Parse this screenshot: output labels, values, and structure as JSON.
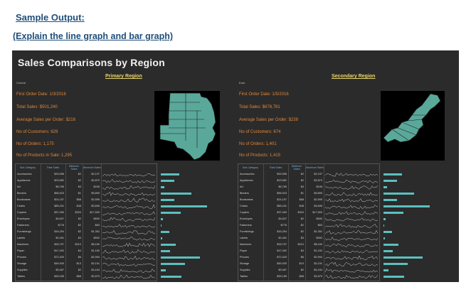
{
  "doc": {
    "title": "Sample Output:",
    "subtitle": "(Explain the line graph and bar graph)"
  },
  "dashboard": {
    "title": "Sales Comparisons by Region",
    "columns": {
      "category": "Sub-Category",
      "total": "Total Sales",
      "min": "Minimum Sales",
      "max": "Maximum Sales"
    },
    "regions": [
      {
        "heading": "Primary Region",
        "subregion": "Central",
        "stats": [
          "First Order Date: 1/3/2016",
          "Total Sales: $501,240",
          "Average Sales per Order: $216",
          "No of Customers: 629",
          "No of Orders: 1,175",
          "No of Products in Sale: 1,295"
        ],
        "map": "central-us-map"
      },
      {
        "heading": "Secondary Region",
        "subregion": "East",
        "stats": [
          "First Order Date: 1/5/2016",
          "Total Sales: $678,781",
          "Average Sales per Order: $238",
          "No of Customers: 674",
          "No of Orders: 1,401",
          "No of Products: 1,415"
        ],
        "map": "east-us-map"
      }
    ],
    "rows": [
      {
        "cat": "Accessories",
        "total": "$33,956",
        "min": "$2",
        "max": "$2,197",
        "bar": 0.3
      },
      {
        "cat": "Appliances",
        "total": "$23,582",
        "min": "$2",
        "max": "$2,870",
        "bar": 0.22
      },
      {
        "cat": "Art",
        "total": "$5,765",
        "min": "$3",
        "max": "$245",
        "bar": 0.06
      },
      {
        "cat": "Binders",
        "total": "$56,923",
        "min": "$1",
        "max": "$9,899",
        "bar": 0.5
      },
      {
        "cat": "Bookcases",
        "total": "$24,157",
        "min": "$68",
        "max": "$2,595",
        "bar": 0.22
      },
      {
        "cat": "Chairs",
        "total": "$85,231",
        "min": "$48",
        "max": "$3,696",
        "bar": 0.75
      },
      {
        "cat": "Copiers",
        "total": "$37,260",
        "min": "$320",
        "max": "$17,500",
        "bar": 0.33
      },
      {
        "cat": "Envelopes",
        "total": "$4,637",
        "min": "$2",
        "max": "$690",
        "bar": 0.04
      },
      {
        "cat": "Fasteners",
        "total": "$778",
        "min": "$2",
        "max": "$63",
        "bar": 0.01
      },
      {
        "cat": "Furnishings",
        "total": "$16,254",
        "min": "$2",
        "max": "$1,351",
        "bar": 0.14
      },
      {
        "cat": "Labels",
        "total": "$2,451",
        "min": "$3",
        "max": "$592",
        "bar": 0.02
      },
      {
        "cat": "Machines",
        "total": "$26,797",
        "min": "$210",
        "max": "$8,160",
        "bar": 0.24
      },
      {
        "cat": "Paper",
        "total": "$17,492",
        "min": "$4",
        "max": "$1,162",
        "bar": 0.15
      },
      {
        "cat": "Phones",
        "total": "$72,403",
        "min": "$6",
        "max": "$2,994",
        "bar": 0.64
      },
      {
        "cat": "Storage",
        "total": "$45,930",
        "min": "$13",
        "max": "$2,191",
        "bar": 0.4
      },
      {
        "cat": "Supplies",
        "total": "$9,467",
        "min": "$2",
        "max": "$4,164",
        "bar": 0.08
      },
      {
        "cat": "Tables",
        "total": "$39,155",
        "min": "$68",
        "max": "$2,679",
        "bar": 0.34
      }
    ],
    "colors": {
      "background": "#2b2b2b",
      "stat": "#e0873a",
      "heading": "#e8d36a",
      "bar": "#5bc0bf",
      "map_fill": "#5aa89a"
    }
  }
}
